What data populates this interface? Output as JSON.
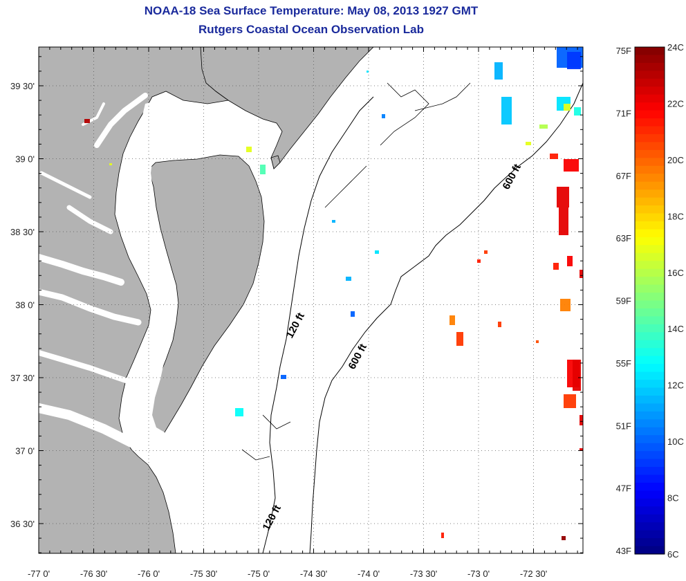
{
  "title": {
    "line1": "NOAA-18 Sea Surface Temperature:  May 08, 2013 1927 GMT",
    "line2": "Rutgers Coastal Ocean Observation Lab"
  },
  "map": {
    "longitude_ticks": [
      "-77 0'",
      "-76 30'",
      "-76 0'",
      "-75 30'",
      "-75 0'",
      "-74 30'",
      "-74 0'",
      "-73 30'",
      "-73 0'",
      "-72 30'"
    ],
    "latitude_ticks": [
      "39 30'",
      "39 0'",
      "38 30'",
      "38 0'",
      "37 30'",
      "37 0'",
      "36 30'"
    ],
    "land_color": "#b3b3b3",
    "water_color": "#ffffff",
    "grid": "dotted",
    "contours": [
      {
        "label": "600 ft"
      },
      {
        "label": "120 ft"
      },
      {
        "label": "600 ft"
      },
      {
        "label": "120 ft"
      }
    ]
  },
  "colorbar": {
    "fahrenheit_labels": [
      "75F",
      "71F",
      "67F",
      "63F",
      "59F",
      "55F",
      "51F",
      "47F",
      "43F"
    ],
    "celsius_labels": [
      "24C",
      "22C",
      "20C",
      "18C",
      "16C",
      "14C",
      "12C",
      "10C",
      "8C",
      "6C"
    ],
    "colormap": "jet",
    "min_c": 6,
    "max_c": 24
  }
}
